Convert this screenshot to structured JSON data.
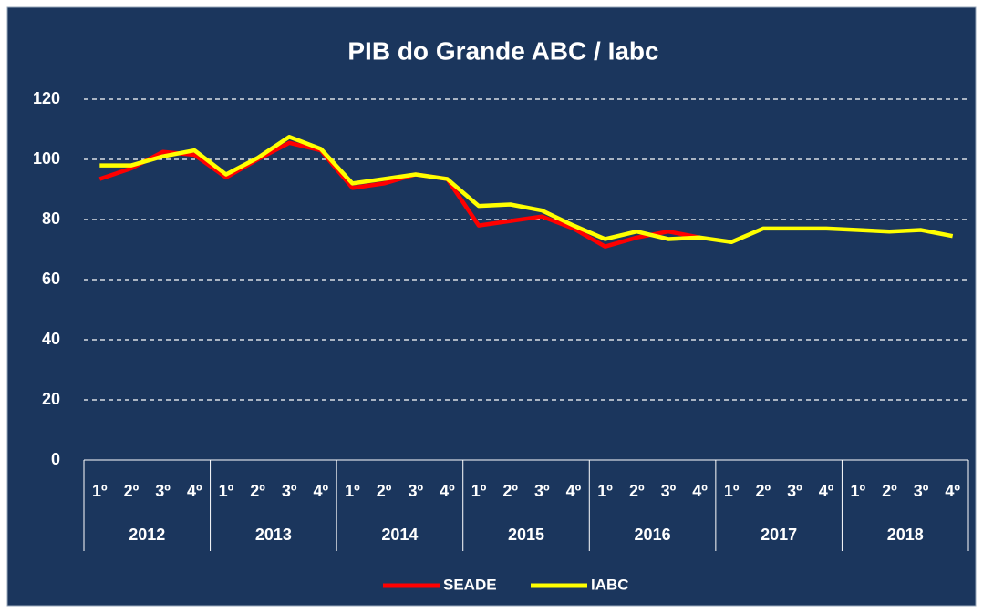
{
  "chart_data": {
    "type": "line",
    "title": "PIB do Grande ABC / Iabc",
    "categories": [
      "1º",
      "2º",
      "3º",
      "4º",
      "1º",
      "2º",
      "3º",
      "4º",
      "1º",
      "2º",
      "3º",
      "4º",
      "1º",
      "2º",
      "3º",
      "4º",
      "1º",
      "2º",
      "3º",
      "4º",
      "1º",
      "2º",
      "3º",
      "4º",
      "1º",
      "2º",
      "3º",
      "4º"
    ],
    "groups": [
      "2012",
      "2013",
      "2014",
      "2015",
      "2016",
      "2017",
      "2018"
    ],
    "series": [
      {
        "name": "SEADE",
        "color": "#ff0000",
        "values": [
          93.5,
          97,
          102.5,
          101.5,
          94,
          100,
          105.5,
          103,
          90.5,
          92,
          95,
          93.5,
          78,
          79.5,
          81,
          77,
          71,
          74,
          76,
          74,
          null,
          null,
          null,
          null,
          null,
          null,
          null,
          null
        ]
      },
      {
        "name": "IABC",
        "color": "#ffff00",
        "values": [
          98,
          98,
          101,
          103,
          95,
          100.5,
          107.5,
          103.5,
          92,
          93.5,
          95,
          93.5,
          84.5,
          85,
          83,
          78,
          73.5,
          76,
          73.5,
          74,
          72.5,
          77,
          77,
          77,
          76.5,
          76,
          76.5,
          74.5
        ]
      }
    ],
    "ylim": [
      0,
      120
    ],
    "yticks": [
      0,
      20,
      40,
      60,
      80,
      100,
      120
    ],
    "grid": true,
    "legend": "bottom"
  }
}
